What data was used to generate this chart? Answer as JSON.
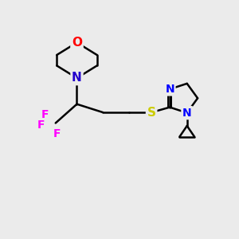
{
  "bg_color": "#ebebeb",
  "bond_color": "#000000",
  "atom_colors": {
    "O": "#ff0000",
    "N_morph": "#2200cc",
    "N_im": "#0000ff",
    "F": "#ff00ff",
    "S": "#cccc00",
    "C": "#000000"
  },
  "figsize": [
    3.0,
    3.0
  ],
  "dpi": 100,
  "xlim": [
    0,
    10
  ],
  "ylim": [
    0,
    10
  ]
}
